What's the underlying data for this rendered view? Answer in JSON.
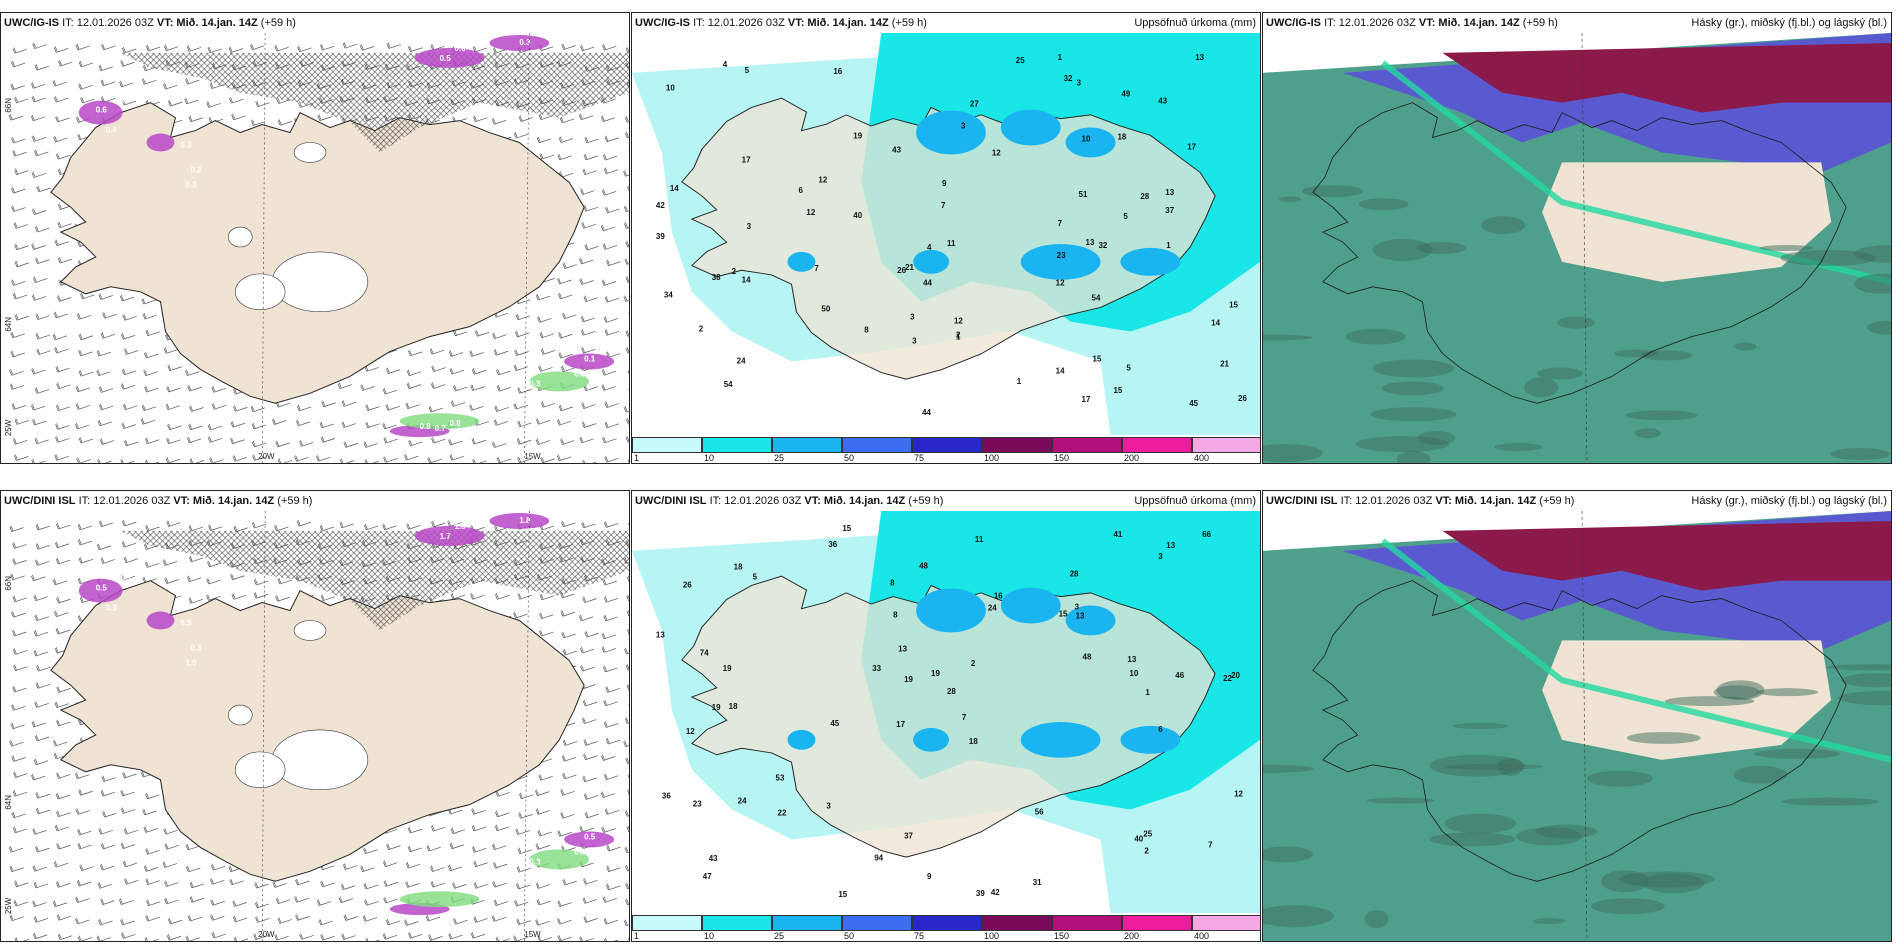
{
  "panels": [
    {
      "id": "p1",
      "model": "UWC/IG-IS",
      "it": "IT: 12.01.2026 03Z",
      "vt": "VT: Mið. 14.jan. 14Z",
      "lead": "(+59 h)",
      "right": "",
      "lat_labels": [
        "66N",
        "64N",
        "25W"
      ],
      "lon_labels": [
        "20W",
        "15W"
      ],
      "snow_labels": [
        "0.6",
        "2.0",
        "0.4",
        "0.1",
        "0.3",
        "0.2",
        "0.3",
        "0.5",
        "0.6",
        "0.3",
        "0.1",
        "0.6",
        "0.3",
        "0.8",
        "0.7",
        "0.8"
      ]
    },
    {
      "id": "p2",
      "model": "UWC/IG-IS",
      "it": "IT: 12.01.2026 03Z",
      "vt": "VT: Mið. 14.jan. 14Z",
      "lead": "(+59 h)",
      "right": "Uppsöfnuð úrkoma (mm)",
      "numbers": [
        "12",
        "15",
        "28",
        "14",
        "14",
        "18",
        "13",
        "9",
        "21",
        "15",
        "13",
        "23",
        "34",
        "54",
        "50",
        "45",
        "43",
        "38",
        "49",
        "43",
        "44",
        "39",
        "51",
        "32",
        "37",
        "24",
        "17",
        "10",
        "26",
        "14",
        "17",
        "25",
        "14",
        "15",
        "40",
        "54",
        "12",
        "11",
        "32",
        "17",
        "21",
        "7",
        "27",
        "44",
        "42",
        "19",
        "13",
        "12",
        "4",
        "5",
        "3",
        "6",
        "7",
        "5",
        "10",
        "12",
        "3",
        "4",
        "5",
        "2",
        "1",
        "3",
        "3",
        "1",
        "1",
        "2",
        "7",
        "8",
        "12",
        "26",
        "16",
        "3",
        "2",
        "1"
      ]
    },
    {
      "id": "p3",
      "model": "UWC/IG-IS",
      "it": "IT: 12.01.2026 03Z",
      "vt": "VT: Mið. 14.jan. 14Z",
      "lead": "(+59 h)",
      "right": "Hásky (gr.), miðský (fj.bl.) og lágský (bl.)"
    },
    {
      "id": "p4",
      "model": "UWC/DINI ISL",
      "it": "IT: 12.01.2026 03Z",
      "vt": "VT: Mið. 14.jan. 14Z",
      "lead": "(+59 h)",
      "right": "",
      "lat_labels": [
        "66N",
        "64N",
        "25W"
      ],
      "lon_labels": [
        "20W",
        "15W"
      ],
      "snow_labels": [
        "0.5",
        "0.1",
        "0.3",
        "0.1",
        "0.5",
        "0.3",
        "1.0",
        "1.7",
        "1.0",
        "1.8",
        "0.5",
        "0.8",
        "0.3"
      ]
    },
    {
      "id": "p5",
      "model": "UWC/DINI ISL",
      "it": "IT: 12.01.2026 03Z",
      "vt": "VT: Mið. 14.jan. 14Z",
      "lead": "(+59 h)",
      "right": "Uppsöfnuð úrkoma (mm)",
      "numbers": [
        "15",
        "28",
        "22",
        "17",
        "18",
        "18",
        "26",
        "15",
        "12",
        "24",
        "28",
        "47",
        "36",
        "45",
        "39",
        "42",
        "37",
        "41",
        "48",
        "53",
        "19",
        "19",
        "20",
        "46",
        "36",
        "74",
        "19",
        "10",
        "25",
        "23",
        "40",
        "16",
        "24",
        "33",
        "56",
        "12",
        "13",
        "94",
        "66",
        "48",
        "43",
        "15",
        "31",
        "18",
        "9",
        "13",
        "2",
        "3",
        "13",
        "7",
        "8",
        "1",
        "2",
        "3",
        "11",
        "22",
        "13",
        "19",
        "13",
        "8",
        "7",
        "6",
        "5",
        "3"
      ]
    },
    {
      "id": "p6",
      "model": "UWC/DINI ISL",
      "it": "IT: 12.01.2026 03Z",
      "vt": "VT: Mið. 14.jan. 14Z",
      "lead": "(+59 h)",
      "right": "Hásky (gr.), miðský (fj.bl.) og lágský (bl.)"
    }
  ],
  "colorbar": {
    "ticks": [
      "1",
      "10",
      "25",
      "50",
      "75",
      "100",
      "150",
      "200",
      "400"
    ],
    "colors": [
      "#c8fbfb",
      "#19e6e6",
      "#1ab4f0",
      "#3c6cf0",
      "#2828c8",
      "#7a0a5a",
      "#b0107a",
      "#f01ca0",
      "#f5a8e6"
    ]
  },
  "colors": {
    "land": "#efe3d3",
    "sea_precip_light": "#b7f5f5",
    "precip_mid": "#19e6e6",
    "precip_heavy": "#1ab4f0",
    "cloud_high": "#8b1a4a",
    "cloud_mid": "#5a5ad0",
    "cloud_low": "#2f8f78"
  }
}
